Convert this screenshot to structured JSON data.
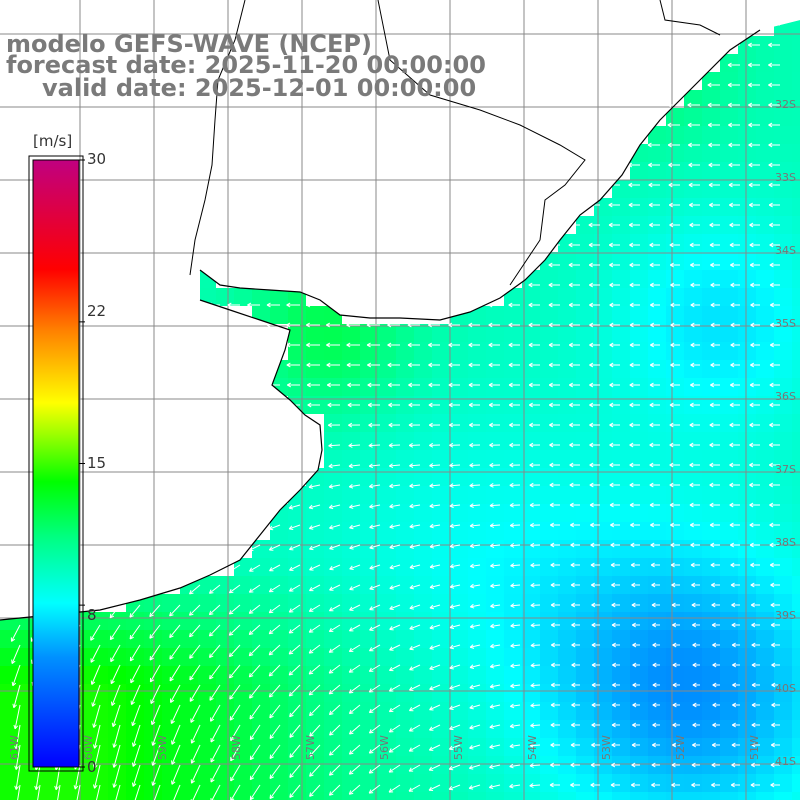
{
  "title": {
    "line1": "modelo GEFS-WAVE (NCEP)",
    "line2": "forecast date: 2025-11-20 00:00:00",
    "line3": "valid date: 2025-12-01 00:00:00"
  },
  "colorbar": {
    "units": "[m/s]",
    "ticks": [
      "30",
      "22",
      "15",
      "8",
      "0"
    ],
    "tick_values": [
      30,
      22,
      15,
      8,
      0
    ],
    "range": [
      0,
      30
    ],
    "colors": [
      "#0000ff",
      "#00a0ff",
      "#00ffff",
      "#00ff00",
      "#ffff00",
      "#ff8000",
      "#ff0000",
      "#c00080"
    ]
  },
  "lat_labels": [
    "32S",
    "33S",
    "34S",
    "35S",
    "36S",
    "37S",
    "38S",
    "39S",
    "40S",
    "41S"
  ],
  "lon_labels": [
    "61W",
    "60W",
    "59W",
    "58W",
    "57W",
    "56W",
    "55W",
    "54W",
    "53W",
    "52W",
    "51W"
  ],
  "land_color": "#ffffff",
  "coast_color": "#000000",
  "grid_color": "#888888",
  "arrow_color": "#ffffff"
}
